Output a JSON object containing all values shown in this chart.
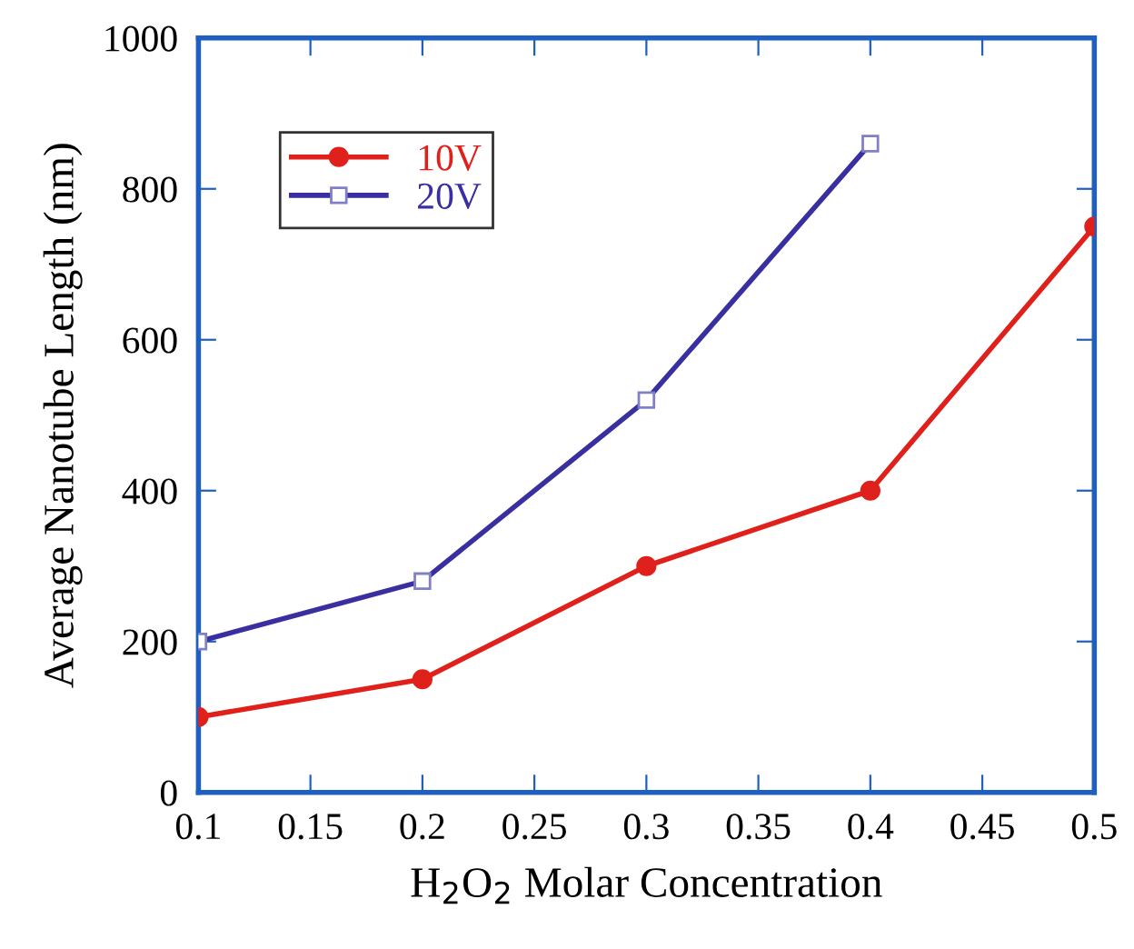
{
  "chart_data": {
    "type": "line",
    "xlabel": "H$_{2}$O$_{2}$ Molar Concentration",
    "ylabel": "Average Nanotube Length (nm)",
    "x": [
      0.1,
      0.2,
      0.3,
      0.4,
      0.5
    ],
    "series": [
      {
        "name": "10V",
        "color": "#e0201b",
        "marker": "circle",
        "values": [
          100,
          150,
          300,
          400,
          750
        ]
      },
      {
        "name": "20V",
        "color": "#3a2fa0",
        "marker": "square",
        "x": [
          0.1,
          0.2,
          0.3,
          0.4
        ],
        "values": [
          200,
          280,
          520,
          860
        ]
      }
    ],
    "xlim": [
      0.1,
      0.5
    ],
    "xticks": [
      0.1,
      0.15,
      0.2,
      0.25,
      0.3,
      0.35,
      0.4,
      0.45,
      0.5
    ],
    "ylim": [
      0,
      1000
    ],
    "yticks": [
      0,
      200,
      400,
      600,
      800,
      1000
    ],
    "grid": false,
    "legend": "top left",
    "line_style": "solid"
  }
}
